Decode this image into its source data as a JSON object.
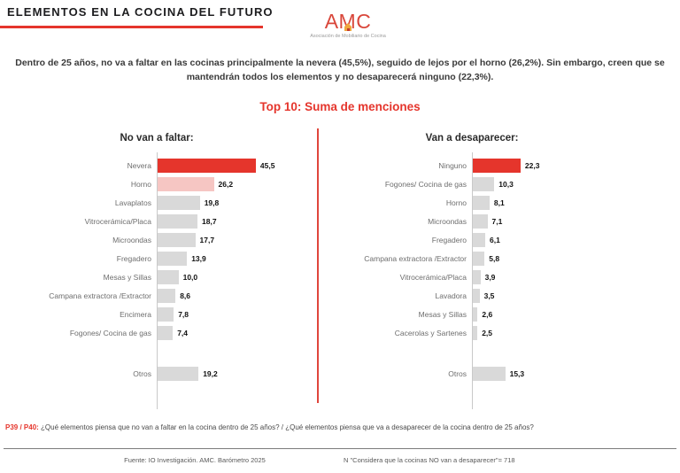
{
  "page": {
    "title": "ELEMENTOS EN LA COCINA DEL FUTURO"
  },
  "logo": {
    "text": "AMC",
    "subtitle": "Asociación de Mobiliario de Cocina"
  },
  "intro": "Dentro de 25 años, no va a faltar en las cocinas principalmente la nevera (45,5%), seguido de lejos por el horno (26,2%). Sin embargo, creen que se mantendrán todos los elementos y no desaparecerá ninguno (22,3%).",
  "section_title": "Top 10: Suma de menciones",
  "colors": {
    "accent_red": "#e5352c",
    "highlight_pink": "#f6c6c3",
    "bar_gray": "#d9d9d9",
    "logo_red": "#d9473b",
    "logo_house_orange": "#f0a73e"
  },
  "chart_data": [
    {
      "type": "bar",
      "orientation": "horizontal",
      "title": "No van a faltar:",
      "categories": [
        "Nevera",
        "Horno",
        "Lavaplatos",
        "Vitrocerámica/Placa",
        "Microondas",
        "Fregadero",
        "Mesas y Sillas",
        "Campana extractora /Extractor",
        "Encimera",
        "Fogones/ Cocina de gas",
        "Otros"
      ],
      "values": [
        45.5,
        26.2,
        19.8,
        18.7,
        17.7,
        13.9,
        10.0,
        8.6,
        7.8,
        7.4,
        19.2
      ],
      "value_labels": [
        "45,5",
        "26,2",
        "19,8",
        "18,7",
        "17,7",
        "13,9",
        "10,0",
        "8,6",
        "7,8",
        "7,4",
        "19,2"
      ],
      "bar_colors": [
        "#e5352c",
        "#f6c6c3",
        "#d9d9d9",
        "#d9d9d9",
        "#d9d9d9",
        "#d9d9d9",
        "#d9d9d9",
        "#d9d9d9",
        "#d9d9d9",
        "#d9d9d9",
        "#d9d9d9"
      ],
      "xlim": [
        0,
        50
      ],
      "grid": false,
      "legend": "none"
    },
    {
      "type": "bar",
      "orientation": "horizontal",
      "title": "Van a desaparecer:",
      "categories": [
        "Ninguno",
        "Fogones/ Cocina de gas",
        "Horno",
        "Microondas",
        "Fregadero",
        "Campana extractora /Extractor",
        "Vitrocerámica/Placa",
        "Lavadora",
        "Mesas y Sillas",
        "Cacerolas y Sartenes",
        "Otros"
      ],
      "values": [
        22.3,
        10.3,
        8.1,
        7.1,
        6.1,
        5.8,
        3.9,
        3.5,
        2.6,
        2.5,
        15.3
      ],
      "value_labels": [
        "22,3",
        "10,3",
        "8,1",
        "7,1",
        "6,1",
        "5,8",
        "3,9",
        "3,5",
        "2,6",
        "2,5",
        "15,3"
      ],
      "bar_colors": [
        "#e5352c",
        "#d9d9d9",
        "#d9d9d9",
        "#d9d9d9",
        "#d9d9d9",
        "#d9d9d9",
        "#d9d9d9",
        "#d9d9d9",
        "#d9d9d9",
        "#d9d9d9",
        "#d9d9d9"
      ],
      "xlim": [
        0,
        50
      ],
      "grid": false,
      "legend": "none"
    }
  ],
  "footnote": {
    "prefix": "P39 / P40:",
    "text": " ¿Qué elementos piensa que no van a faltar en la cocina dentro de 25 años? / ¿Qué elementos piensa que va a desaparecer de la cocina dentro de 25 años?"
  },
  "footer": {
    "source": "Fuente: IO Investigación. AMC. Barómetro 2025",
    "sample_note": "N \"Considera que la cocinas NO van a desaparecer\"= 718"
  }
}
